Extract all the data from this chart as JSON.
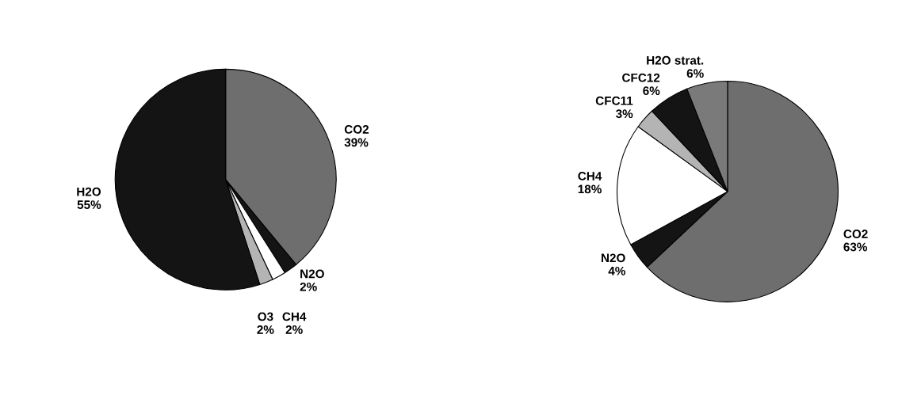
{
  "chart_data": [
    {
      "type": "pie",
      "categories": [
        "CO2",
        "N2O",
        "CH4",
        "O3",
        "H2O"
      ],
      "values": [
        39,
        2,
        2,
        2,
        55
      ],
      "value_labels": [
        "39%",
        "2%",
        "2%",
        "2%",
        "55%"
      ],
      "colors": [
        "#6e6e6e",
        "#141414",
        "#ffffff",
        "#b4b4b4",
        "#141414"
      ]
    },
    {
      "type": "pie",
      "categories": [
        "CO2",
        "N2O",
        "CH4",
        "CFC11",
        "CFC12",
        "H2O strat."
      ],
      "values": [
        63,
        4,
        18,
        3,
        6,
        6
      ],
      "value_labels": [
        "63%",
        "4%",
        "18%",
        "3%",
        "6%",
        "6%"
      ],
      "colors": [
        "#6e6e6e",
        "#141414",
        "#ffffff",
        "#b4b4b4",
        "#141414",
        "#7a7a7a"
      ]
    }
  ]
}
